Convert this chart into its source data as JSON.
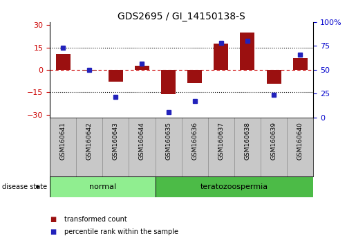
{
  "title": "GDS2695 / GI_14150138-S",
  "samples": [
    "GSM160641",
    "GSM160642",
    "GSM160643",
    "GSM160644",
    "GSM160635",
    "GSM160636",
    "GSM160637",
    "GSM160638",
    "GSM160639",
    "GSM160640"
  ],
  "groups": [
    {
      "label": "normal",
      "indices": [
        0,
        1,
        2,
        3
      ],
      "color": "#90EE90"
    },
    {
      "label": "teratozoospermia",
      "indices": [
        4,
        5,
        6,
        7,
        8,
        9
      ],
      "color": "#4CBB47"
    }
  ],
  "red_bars": [
    10.5,
    -0.5,
    -8.0,
    2.5,
    -16.5,
    -9.0,
    17.5,
    25.0,
    -9.5,
    8.0
  ],
  "blue_squares": [
    75,
    50,
    20,
    57,
    3,
    15,
    80,
    82,
    22,
    67
  ],
  "ylim_left": [
    -32,
    32
  ],
  "ylim_right": [
    0,
    100
  ],
  "yticks_left": [
    -30,
    -15,
    0,
    15,
    30
  ],
  "yticks_right": [
    0,
    25,
    50,
    75,
    100
  ],
  "bar_color": "#9B1010",
  "square_color": "#2222BB",
  "bg_color": "#FFFFFF",
  "left_tick_color": "#CC0000",
  "right_tick_color": "#0000CC",
  "legend_red_label": "transformed count",
  "legend_blue_label": "percentile rank within the sample",
  "disease_state_label": "disease state"
}
